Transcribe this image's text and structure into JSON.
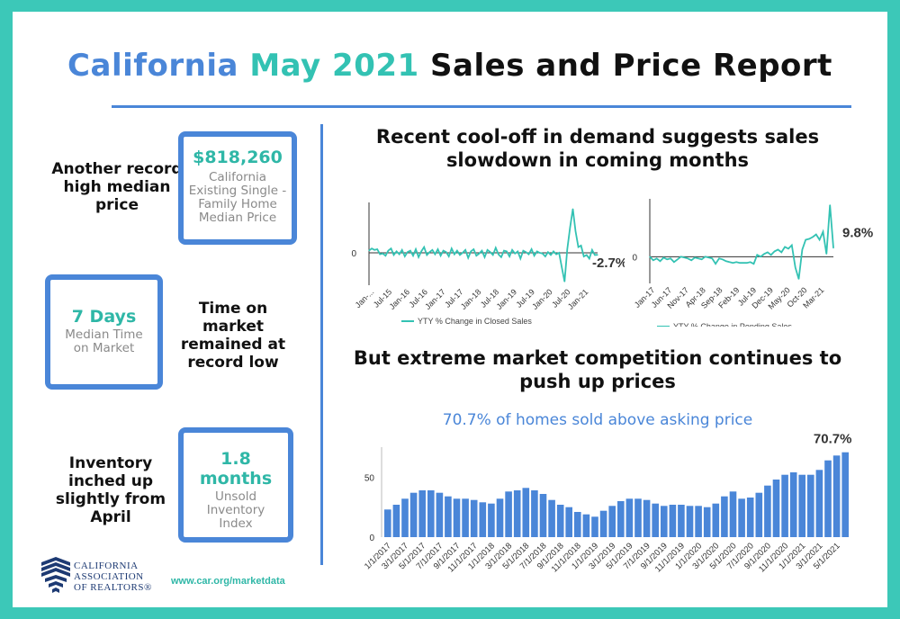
{
  "title": {
    "part1": "California",
    "part2": "May 2021",
    "part3": "Sales and Price Report"
  },
  "stats": [
    {
      "label": "Another record high median price",
      "value": "$818,260",
      "sub": "California Existing Single -Family Home Median Price"
    },
    {
      "label": "Time on market remained at record low",
      "value": "7 Days",
      "sub": "Median Time on Market"
    },
    {
      "label": "Inventory inched up slightly from April",
      "value": "1.8 months",
      "sub": "Unsold Inventory Index"
    }
  ],
  "heading1": "Recent cool-off in demand suggests sales slowdown in coming months",
  "heading2": "But extreme market competition continues to push up prices",
  "footer": {
    "url": "www.car.org/marketdata",
    "logo_lines": [
      "CALIFORNIA",
      "ASSOCIATION",
      "OF REALTORS®"
    ]
  },
  "colors": {
    "blue": "#4a86d8",
    "teal": "#33c2b3",
    "frame": "#3cc8b8"
  },
  "chart_data": [
    {
      "type": "line",
      "legend": "YTY % Change in Closed Sales",
      "end_label": "-2.7%",
      "y_tick_label": "0",
      "x_tick_labels": [
        "Jan-...",
        "Jul-15",
        "Jan-16",
        "Jul-16",
        "Jan-17",
        "Jul-17",
        "Jan-18",
        "Jul-18",
        "Jan-19",
        "Jul-19",
        "Jan-20",
        "Jul-20",
        "Jan-21"
      ],
      "x_start": "2015-01",
      "x_end": "2021-05",
      "y_range": [
        -45,
        70
      ],
      "values": [
        3,
        6,
        4,
        5,
        -2,
        -1,
        -4,
        3,
        6,
        -3,
        2,
        -2,
        4,
        -5,
        1,
        3,
        -4,
        5,
        -6,
        2,
        8,
        -3,
        1,
        4,
        -2,
        5,
        -4,
        3,
        1,
        -5,
        6,
        -2,
        3,
        -3,
        0,
        4,
        -7,
        2,
        5,
        -4,
        -1,
        3,
        -6,
        4,
        1,
        -3,
        7,
        -2,
        -6,
        3,
        2,
        -5,
        4,
        -1,
        2,
        -8,
        3,
        1,
        -2,
        5,
        -4,
        2,
        0,
        -1,
        -5,
        1,
        -3,
        2,
        -2,
        0,
        -20,
        -40,
        5,
        35,
        61,
        30,
        8,
        10,
        -5,
        -3,
        -8,
        4,
        -3,
        -2.7
      ]
    },
    {
      "type": "line",
      "legend": "YTY % Change in Pending Sales",
      "end_label": "9.8%",
      "y_tick_label": "0",
      "x_tick_labels": [
        "Jan-17",
        "Jun-17",
        "Nov-17",
        "Apr-18",
        "Sep-18",
        "Feb-19",
        "Jul-19",
        "Dec-19",
        "May-20",
        "Oct-20",
        "Mar-21"
      ],
      "x_start": "2017-01",
      "x_end": "2021-05",
      "y_range": [
        -30,
        65
      ],
      "values": [
        0,
        -4,
        -2,
        -5,
        -1,
        -3,
        -2,
        -6,
        -3,
        0,
        -1,
        -2,
        -4,
        -1,
        -2,
        -3,
        0,
        -1,
        -2,
        -8,
        -2,
        -3,
        -5,
        -6,
        -7,
        -6,
        -7,
        -7,
        -7,
        -6,
        -8,
        2,
        0,
        3,
        5,
        2,
        6,
        8,
        5,
        11,
        9,
        13,
        -12,
        -25,
        8,
        19,
        20,
        22,
        25,
        19,
        28,
        3,
        58,
        9.8
      ]
    },
    {
      "type": "bar",
      "title": "70.7% of homes sold above asking price",
      "end_label": "70.7%",
      "ylim": [
        0,
        75
      ],
      "y_ticks": [
        0,
        50
      ],
      "x_tick_labels": [
        "1/1/2017",
        "3/1/2017",
        "5/1/2017",
        "7/1/2017",
        "9/1/2017",
        "11/1/2017",
        "1/1/2018",
        "3/1/2018",
        "5/1/2018",
        "7/1/2018",
        "9/1/2018",
        "11/1/2018",
        "1/1/2019",
        "3/1/2019",
        "5/1/2019",
        "7/1/2019",
        "9/1/2019",
        "11/1/2019",
        "1/1/2020",
        "3/1/2020",
        "5/1/2020",
        "7/1/2020",
        "9/1/2020",
        "11/1/2020",
        "1/1/2021",
        "3/1/2021",
        "5/1/2021"
      ],
      "values": [
        23,
        27,
        32,
        37,
        39,
        39,
        37,
        34,
        32,
        32,
        31,
        29,
        28,
        32,
        38,
        39,
        41,
        39,
        36,
        31,
        27,
        25,
        21,
        19,
        17,
        22,
        26,
        30,
        32,
        32,
        31,
        28,
        26,
        27,
        27,
        26,
        26,
        25,
        28,
        34,
        38,
        32,
        33,
        37,
        43,
        48,
        52,
        54,
        52,
        52,
        56,
        64,
        68,
        70.7
      ]
    }
  ]
}
